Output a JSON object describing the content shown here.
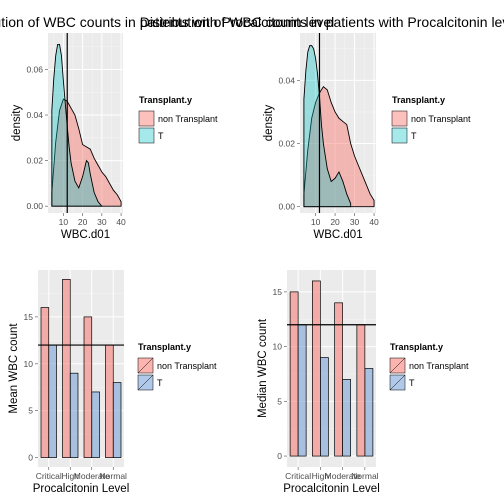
{
  "colors": {
    "panel_bg": "#ebebeb",
    "grid": "#ffffff",
    "non_transplant": "#f8766d",
    "transplant_density": "#00bfc4",
    "transplant_bar": "#6f9cd6",
    "reference_line": "#000000"
  },
  "chart_data": [
    {
      "type": "area",
      "subtype": "density",
      "title": "Distribution of WBC counts in patients with Procalcitonin level",
      "xlabel": "WBC.d01",
      "ylabel": "density",
      "xlim": [
        2,
        41
      ],
      "ylim": [
        -0.003,
        0.076
      ],
      "xticks": [
        10,
        20,
        30,
        40
      ],
      "yticks": [
        0.0,
        0.02,
        0.04,
        0.06
      ],
      "ytick_labels": [
        "0.00",
        "0.02",
        "0.04",
        "0.06"
      ],
      "vline": 12,
      "grid": true,
      "legend": {
        "title": "Transplant.y",
        "position": "right",
        "entries": [
          "non Transplant",
          "T"
        ]
      },
      "series": [
        {
          "name": "non Transplant",
          "x": [
            4,
            6,
            8,
            10,
            12,
            14,
            16,
            18,
            20,
            22,
            24,
            26,
            28,
            30,
            32,
            34,
            36,
            38,
            40
          ],
          "y": [
            0.006,
            0.028,
            0.042,
            0.047,
            0.046,
            0.043,
            0.04,
            0.034,
            0.027,
            0.026,
            0.025,
            0.021,
            0.018,
            0.015,
            0.013,
            0.01,
            0.007,
            0.005,
            0.002
          ]
        },
        {
          "name": "T",
          "x": [
            4,
            5,
            6,
            7,
            8,
            9,
            10,
            11,
            12,
            13,
            14,
            16,
            18,
            20,
            22,
            23,
            24,
            26,
            28,
            30
          ],
          "y": [
            0.042,
            0.056,
            0.066,
            0.071,
            0.071,
            0.066,
            0.055,
            0.045,
            0.035,
            0.026,
            0.019,
            0.011,
            0.008,
            0.013,
            0.02,
            0.019,
            0.014,
            0.006,
            0.002,
            0.0
          ]
        }
      ]
    },
    {
      "type": "area",
      "subtype": "density",
      "title": "Distribution of WBC counts in patients with Procalcitonin level",
      "xlabel": "WBC.d01",
      "ylabel": "density",
      "xlim": [
        2,
        41
      ],
      "ylim": [
        -0.002,
        0.055
      ],
      "xticks": [
        10,
        20,
        30,
        40
      ],
      "yticks": [
        0.0,
        0.02,
        0.04
      ],
      "ytick_labels": [
        "0.00",
        "0.02",
        "0.04"
      ],
      "vline": 12,
      "grid": true,
      "legend": {
        "title": "Transplant.y",
        "position": "right",
        "entries": [
          "non Transplant",
          "T"
        ]
      },
      "series": [
        {
          "name": "non Transplant",
          "x": [
            4,
            6,
            8,
            10,
            12,
            14,
            16,
            18,
            20,
            22,
            24,
            26,
            28,
            30,
            32,
            34,
            36,
            38,
            40
          ],
          "y": [
            0.004,
            0.018,
            0.028,
            0.033,
            0.036,
            0.038,
            0.037,
            0.033,
            0.03,
            0.028,
            0.027,
            0.026,
            0.02,
            0.016,
            0.013,
            0.01,
            0.007,
            0.004,
            0.002
          ]
        },
        {
          "name": "T",
          "x": [
            4,
            5,
            6,
            7,
            8,
            9,
            10,
            11,
            12,
            13,
            14,
            16,
            18,
            20,
            22,
            24,
            26,
            28
          ],
          "y": [
            0.034,
            0.043,
            0.049,
            0.051,
            0.051,
            0.05,
            0.047,
            0.042,
            0.035,
            0.026,
            0.02,
            0.012,
            0.008,
            0.009,
            0.011,
            0.008,
            0.004,
            0.001
          ]
        }
      ]
    },
    {
      "type": "bar",
      "title": "",
      "xlabel": "Procalcitonin Level",
      "ylabel": "Mean WBC count",
      "categories": [
        "Critical",
        "High",
        "Moderate",
        "Normal"
      ],
      "ylim": [
        -1,
        20
      ],
      "yticks": [
        0,
        5,
        10,
        15
      ],
      "hline": 12,
      "grid": true,
      "legend": {
        "title": "Transplant.y",
        "position": "right",
        "entries": [
          "non Transplant",
          "T"
        ]
      },
      "series": [
        {
          "name": "non Transplant",
          "values": [
            16,
            19,
            15,
            12
          ]
        },
        {
          "name": "T",
          "values": [
            12,
            9,
            7,
            8
          ]
        }
      ]
    },
    {
      "type": "bar",
      "title": "",
      "xlabel": "Procalcitonin Level",
      "ylabel": "Median WBC count",
      "categories": [
        "Critical",
        "High",
        "Moderate",
        "Normal"
      ],
      "ylim": [
        -1,
        17
      ],
      "yticks": [
        0,
        5,
        10,
        15
      ],
      "hline": 12,
      "grid": true,
      "legend": {
        "title": "Transplant.y",
        "position": "right",
        "entries": [
          "non Transplant",
          "T"
        ]
      },
      "series": [
        {
          "name": "non Transplant",
          "values": [
            15,
            16,
            14,
            12
          ]
        },
        {
          "name": "T",
          "values": [
            12,
            9,
            7,
            8
          ]
        }
      ]
    }
  ]
}
